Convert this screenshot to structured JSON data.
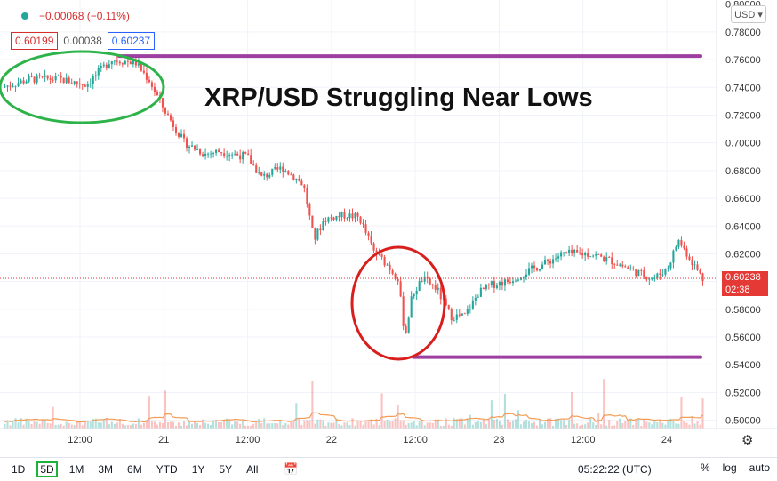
{
  "header": {
    "change": "−0.00068 (−0.11%)",
    "bid": "0.60199",
    "spread": "0.00038",
    "ask": "0.60237"
  },
  "headline": "XRP/USD Struggling Near Lows",
  "currency_button": "USD ▾",
  "last_price": {
    "value": "0.60238",
    "countdown": "02:38"
  },
  "toolbar": {
    "timeframes": [
      "1D",
      "5D",
      "1M",
      "3M",
      "6M",
      "YTD",
      "1Y",
      "5Y",
      "All"
    ],
    "active": "5D",
    "clock": "05:22:22 (UTC)",
    "percent": "%",
    "log": "log",
    "auto": "auto"
  },
  "colors": {
    "up": "#26a69a",
    "down": "#ef5350",
    "annotation_green": "#2db34a",
    "annotation_red": "#d91e1e",
    "level_line": "#9c3fa0",
    "volume_ma": "#f39c55"
  },
  "chart_data": {
    "type": "candlestick",
    "x_ticks": [
      "12:00",
      "21",
      "12:00",
      "22",
      "12:00",
      "23",
      "12:00",
      "24"
    ],
    "y_ticks": [
      "0.50000",
      "0.52000",
      "0.54000",
      "0.56000",
      "0.58000",
      "0.60000",
      "0.62000",
      "0.64000",
      "0.66000",
      "0.68000",
      "0.70000",
      "0.72000",
      "0.74000",
      "0.76000",
      "0.78000",
      "0.80000"
    ],
    "ylim": [
      0.494,
      0.803
    ],
    "anchors": [
      [
        0.0,
        0.74
      ],
      [
        0.04,
        0.746
      ],
      [
        0.08,
        0.746
      ],
      [
        0.12,
        0.742
      ],
      [
        0.14,
        0.752
      ],
      [
        0.155,
        0.76
      ],
      [
        0.19,
        0.758
      ],
      [
        0.21,
        0.745
      ],
      [
        0.23,
        0.725
      ],
      [
        0.26,
        0.7
      ],
      [
        0.29,
        0.692
      ],
      [
        0.31,
        0.694
      ],
      [
        0.35,
        0.69
      ],
      [
        0.37,
        0.675
      ],
      [
        0.4,
        0.682
      ],
      [
        0.43,
        0.67
      ],
      [
        0.445,
        0.63
      ],
      [
        0.46,
        0.645
      ],
      [
        0.49,
        0.648
      ],
      [
        0.51,
        0.646
      ],
      [
        0.53,
        0.622
      ],
      [
        0.55,
        0.612
      ],
      [
        0.565,
        0.602
      ],
      [
        0.575,
        0.56
      ],
      [
        0.585,
        0.59
      ],
      [
        0.6,
        0.602
      ],
      [
        0.62,
        0.595
      ],
      [
        0.64,
        0.575
      ],
      [
        0.66,
        0.575
      ],
      [
        0.68,
        0.592
      ],
      [
        0.7,
        0.598
      ],
      [
        0.72,
        0.6
      ],
      [
        0.74,
        0.605
      ],
      [
        0.77,
        0.612
      ],
      [
        0.8,
        0.62
      ],
      [
        0.84,
        0.62
      ],
      [
        0.87,
        0.615
      ],
      [
        0.9,
        0.608
      ],
      [
        0.93,
        0.602
      ],
      [
        0.95,
        0.61
      ],
      [
        0.965,
        0.63
      ],
      [
        0.98,
        0.618
      ],
      [
        1.0,
        0.602
      ]
    ],
    "levels": [
      {
        "value": 0.7625,
        "from": 0.155,
        "to": 1.0
      },
      {
        "value": 0.5455,
        "from": 0.575,
        "to": 1.0
      }
    ]
  }
}
